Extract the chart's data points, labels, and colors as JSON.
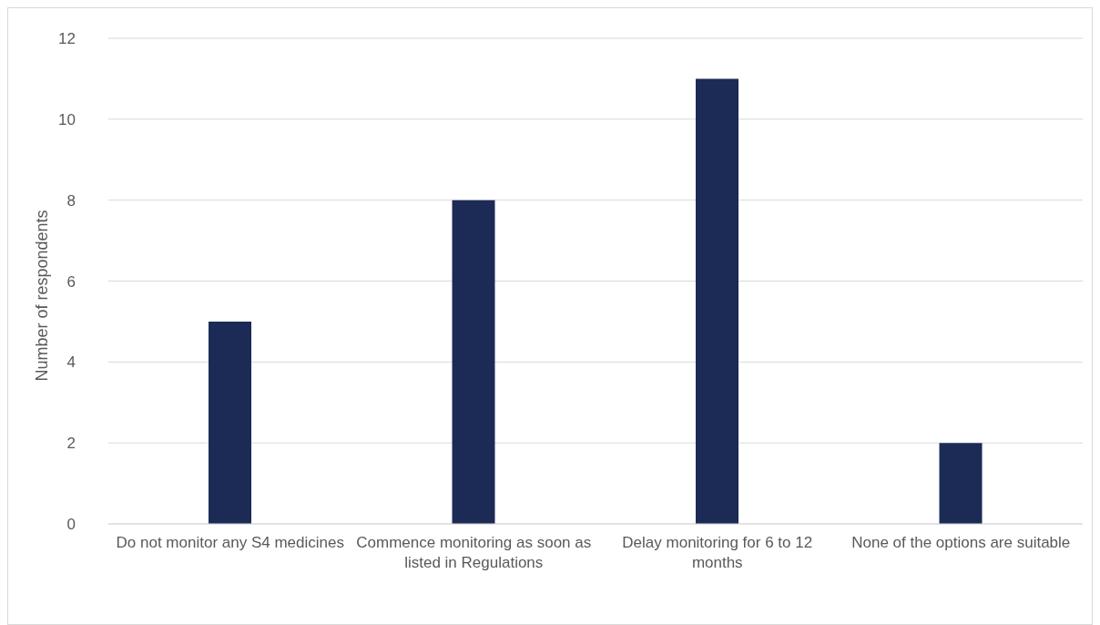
{
  "chart_data": {
    "type": "bar",
    "ylabel": "Number of respondents",
    "categories": [
      "Do not monitor any S4 medicines",
      "Commence monitoring as soon as listed in Regulations",
      "Delay monitoring for 6 to 12 months",
      "None of the options are suitable"
    ],
    "values": [
      5,
      8,
      11,
      2
    ],
    "color": "#1c2b56",
    "ylim": [
      0,
      12
    ],
    "yticks": [
      0,
      2,
      4,
      6,
      8,
      10,
      12
    ],
    "grid": "y"
  }
}
